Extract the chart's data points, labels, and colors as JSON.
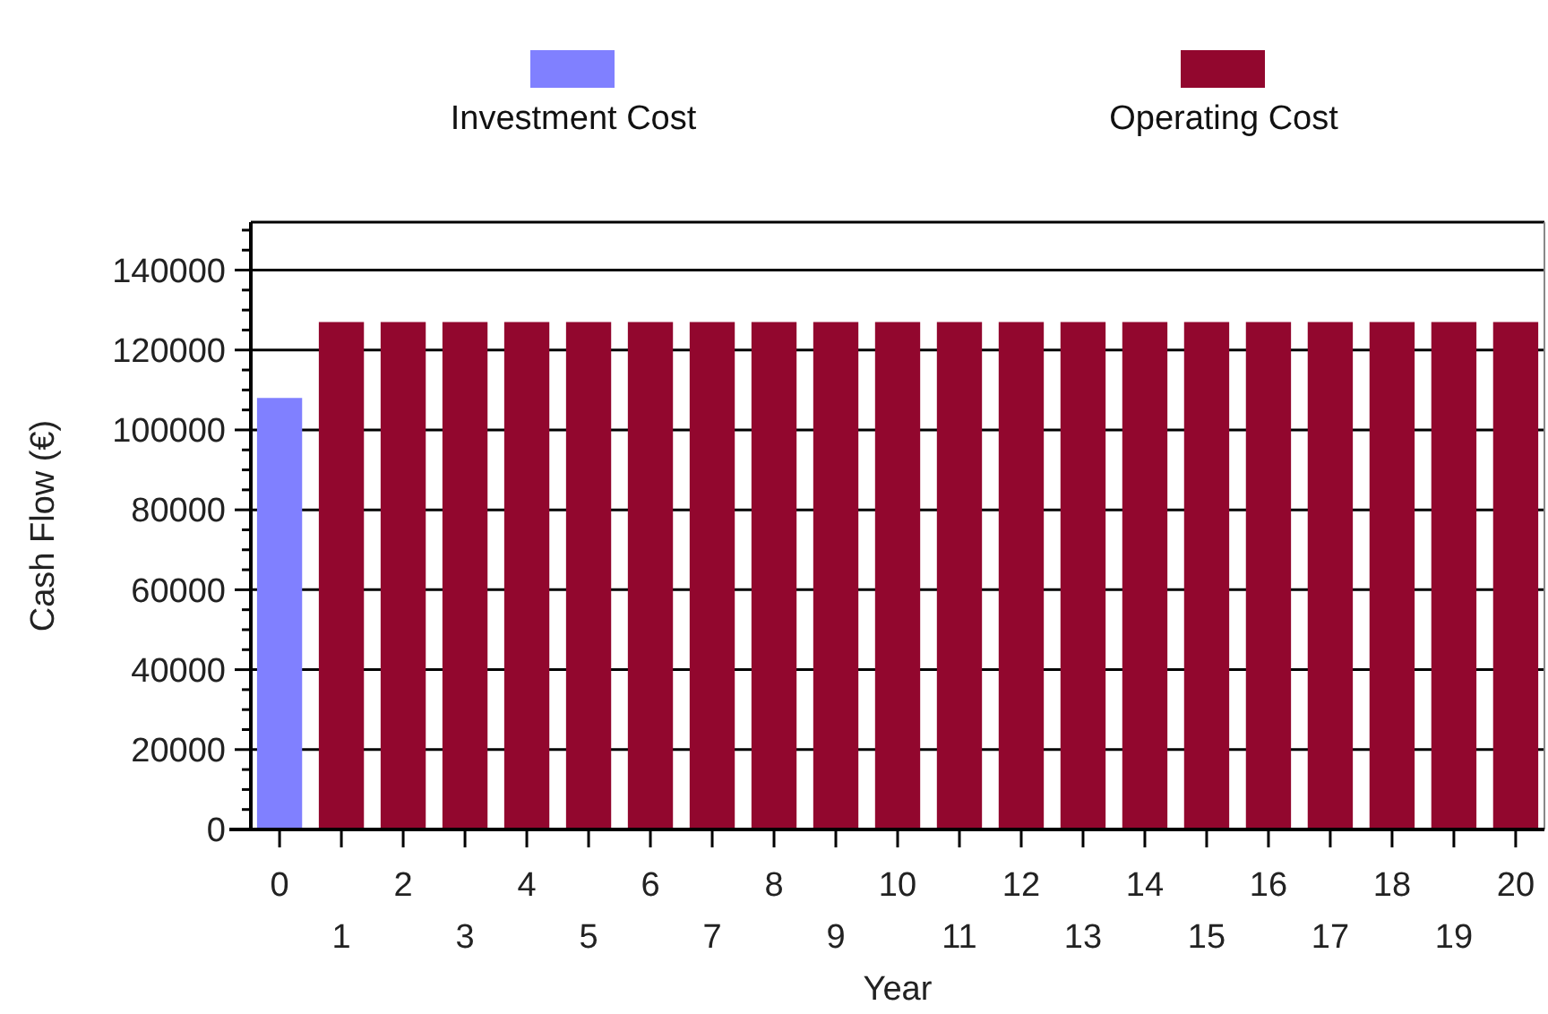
{
  "chart_data": {
    "type": "bar",
    "xlabel": "Year",
    "ylabel": "Cash Flow (€)",
    "categories": [
      "0",
      "1",
      "2",
      "3",
      "4",
      "5",
      "6",
      "7",
      "8",
      "9",
      "10",
      "11",
      "12",
      "13",
      "14",
      "15",
      "16",
      "17",
      "18",
      "19",
      "20"
    ],
    "series": [
      {
        "name": "Investment Cost",
        "color": "#8080ff",
        "values": [
          108000,
          null,
          null,
          null,
          null,
          null,
          null,
          null,
          null,
          null,
          null,
          null,
          null,
          null,
          null,
          null,
          null,
          null,
          null,
          null,
          null
        ]
      },
      {
        "name": "Operating Cost",
        "color": "#92072e",
        "values": [
          null,
          127000,
          127000,
          127000,
          127000,
          127000,
          127000,
          127000,
          127000,
          127000,
          127000,
          127000,
          127000,
          127000,
          127000,
          127000,
          127000,
          127000,
          127000,
          127000,
          127000
        ]
      }
    ],
    "ylim": [
      0,
      152000
    ],
    "yticks": [
      0,
      {
        "value": 5000,
        "label": null
      },
      {
        "value": 10000,
        "label": null
      },
      {
        "value": 15000,
        "label": null
      },
      20000,
      {
        "value": 25000,
        "label": null
      },
      {
        "value": 30000,
        "label": null
      },
      {
        "value": 35000,
        "label": null
      },
      40000,
      {
        "value": 45000,
        "label": null
      },
      {
        "value": 50000,
        "label": null
      },
      {
        "value": 55000,
        "label": null
      },
      60000,
      {
        "value": 65000,
        "label": null
      },
      {
        "value": 70000,
        "label": null
      },
      {
        "value": 75000,
        "label": null
      },
      80000,
      {
        "value": 85000,
        "label": null
      },
      {
        "value": 90000,
        "label": null
      },
      {
        "value": 95000,
        "label": null
      },
      100000,
      {
        "value": 105000,
        "label": null
      },
      {
        "value": 110000,
        "label": null
      },
      {
        "value": 115000,
        "label": null
      },
      120000,
      {
        "value": 125000,
        "label": null
      },
      {
        "value": 130000,
        "label": null
      },
      {
        "value": 135000,
        "label": null
      },
      140000,
      {
        "value": 145000,
        "label": null
      },
      {
        "value": 150000,
        "label": null
      }
    ],
    "grid": "y",
    "legend": "top"
  }
}
